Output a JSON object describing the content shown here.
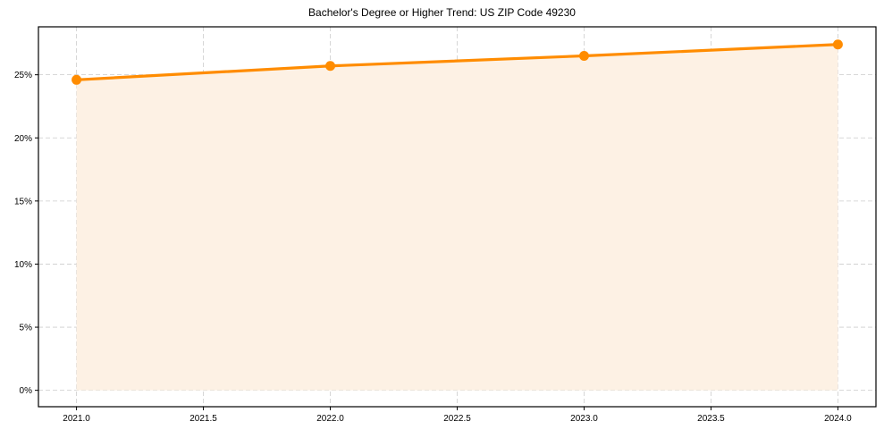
{
  "chart_data": {
    "type": "line",
    "title": "Bachelor's Degree or Higher Trend: US ZIP Code 49230",
    "xlabel": "",
    "ylabel": "",
    "x": [
      2021.0,
      2022.0,
      2023.0,
      2024.0
    ],
    "series": [
      {
        "name": "Bachelor's Degree or Higher",
        "values": [
          24.6,
          25.7,
          26.5,
          27.4
        ],
        "unit": "%"
      }
    ],
    "xticks": [
      "2021.0",
      "2021.5",
      "2022.0",
      "2022.5",
      "2023.0",
      "2023.5",
      "2024.0"
    ],
    "yticks": [
      "0%",
      "5%",
      "10%",
      "15%",
      "20%",
      "25%"
    ],
    "xlim": [
      2020.85,
      2024.15
    ],
    "ylim": [
      -1.3,
      28.8
    ],
    "grid": true,
    "fill_under_line": true,
    "legend": null,
    "colors": {
      "line": "#ff8c00",
      "fill": "#fdf1e4",
      "grid": "#cccccc"
    }
  }
}
